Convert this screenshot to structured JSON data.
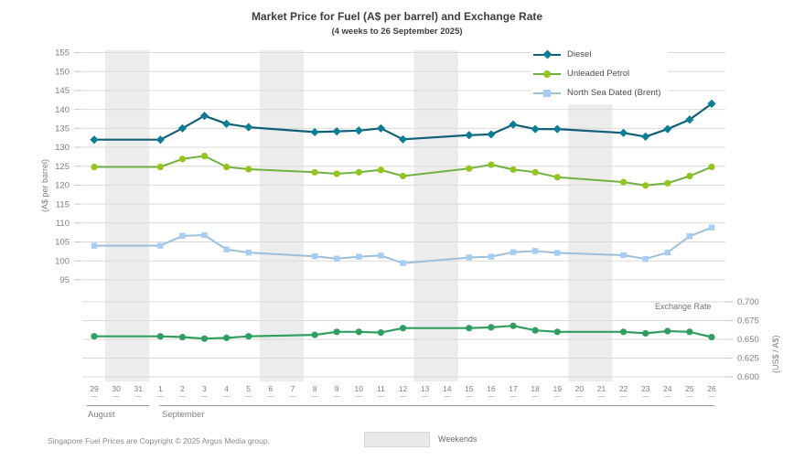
{
  "title": "Market Price for Fuel (A$ per barrel) and Exchange Rate",
  "subtitle": "(4 weeks to 26 September 2025)",
  "footer": {
    "copyright": "Singapore Fuel Prices are Copyright © 2025 Argus Media group.",
    "weekend_label": "Weekends"
  },
  "chart_data": {
    "type": "line",
    "title": "Market Price for Fuel (A$ per barrel) and Exchange Rate",
    "subtitle": "(4 weeks to 26 September 2025)",
    "x_labels": [
      "29",
      "30",
      "31",
      "1",
      "2",
      "3",
      "4",
      "5",
      "6",
      "7",
      "8",
      "9",
      "10",
      "11",
      "12",
      "13",
      "14",
      "15",
      "16",
      "17",
      "18",
      "19",
      "20",
      "21",
      "22",
      "23",
      "24",
      "25",
      "26"
    ],
    "months": [
      {
        "label": "August",
        "start_index": 0,
        "end_index": 2
      },
      {
        "label": "September",
        "start_index": 3,
        "end_index": 28
      }
    ],
    "trading_day_indices": [
      0,
      3,
      4,
      5,
      6,
      7,
      10,
      11,
      12,
      13,
      14,
      17,
      18,
      19,
      20,
      21,
      24,
      25,
      26,
      27,
      28
    ],
    "weekend_band_index_ranges": [
      [
        1,
        2
      ],
      [
        8,
        9
      ],
      [
        15,
        16
      ],
      [
        22,
        23
      ]
    ],
    "left_axis": {
      "label": "(A$ per barrel)",
      "ticks": [
        155,
        150,
        145,
        140,
        135,
        130,
        125,
        120,
        115,
        110,
        105,
        100,
        95
      ],
      "min": 95,
      "max": 155
    },
    "right_axis": {
      "label": "(US$ / A$)",
      "ticks": [
        0.7,
        0.675,
        0.65,
        0.625,
        0.6
      ],
      "min": 0.6,
      "max": 0.7
    },
    "exchange_rate_annotation": "Exchange Rate",
    "grid_color": "#d9d9d9",
    "tick_color": "#c9c9c9",
    "weekend_fill": "#ececec",
    "series": [
      {
        "name": "Diesel",
        "axis": "left",
        "marker": "diamond",
        "line_color": "#115f78",
        "marker_color": "#0b7e97",
        "line_width": 2.2,
        "values": [
          132.0,
          132.0,
          135.0,
          138.3,
          136.2,
          135.3,
          134.0,
          134.2,
          134.4,
          135.0,
          132.1,
          133.2,
          133.4,
          136.0,
          134.8,
          134.8,
          133.8,
          132.8,
          134.8,
          137.3,
          141.5
        ]
      },
      {
        "name": "Unleaded Petrol",
        "axis": "left",
        "marker": "circle",
        "line_color": "#6fb244",
        "marker_color": "#95c51c",
        "line_width": 2,
        "values": [
          124.8,
          124.8,
          126.9,
          127.7,
          124.8,
          124.2,
          123.4,
          123.0,
          123.4,
          124.0,
          122.4,
          124.4,
          125.4,
          124.1,
          123.4,
          122.1,
          120.8,
          119.9,
          120.5,
          122.4,
          124.8
        ]
      },
      {
        "name": "North Sea Dated (Brent)",
        "axis": "left",
        "marker": "square",
        "line_color": "#9dbfd9",
        "marker_color": "#a8cdf4",
        "line_width": 2,
        "values": [
          104.0,
          104.0,
          106.6,
          106.8,
          103.0,
          102.2,
          101.2,
          100.6,
          101.1,
          101.4,
          99.4,
          100.9,
          101.1,
          102.3,
          102.6,
          102.1,
          101.5,
          100.5,
          102.2,
          106.5,
          108.8
        ]
      },
      {
        "name": "Exchange Rate",
        "axis": "right",
        "marker": "circle",
        "line_color": "#2f9e60",
        "marker_color": "#2f9e60",
        "line_width": 2.2,
        "values": [
          0.654,
          0.654,
          0.653,
          0.651,
          0.652,
          0.654,
          0.656,
          0.66,
          0.66,
          0.659,
          0.665,
          0.665,
          0.666,
          0.668,
          0.662,
          0.66,
          0.66,
          0.658,
          0.661,
          0.66,
          0.653
        ]
      }
    ]
  }
}
